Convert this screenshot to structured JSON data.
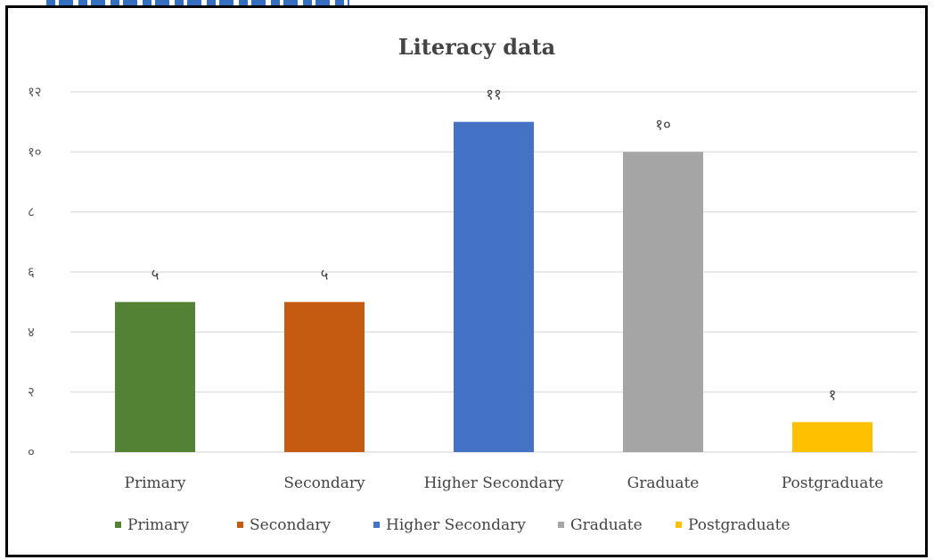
{
  "chart_data": {
    "type": "bar",
    "title": "Literacy data",
    "xlabel": "",
    "ylabel": "",
    "categories": [
      "Primary",
      "Secondary",
      "Higher Secondary",
      "Graduate",
      "Postgraduate"
    ],
    "values": [
      5,
      5,
      11,
      10,
      1
    ],
    "data_labels": [
      "५",
      "५",
      "११",
      "१०",
      "१"
    ],
    "colors": [
      "#548235",
      "#c55a11",
      "#4472c4",
      "#a5a5a5",
      "#ffc000"
    ],
    "ylim": [
      0,
      12
    ],
    "yticks": [
      0,
      2,
      4,
      6,
      8,
      10,
      12
    ],
    "ytick_labels": [
      "०",
      "२",
      "४",
      "६",
      "८",
      "१०",
      "१२"
    ],
    "grid": true,
    "legend": {
      "position": "bottom",
      "entries": [
        "Primary",
        "Secondary",
        "Higher Secondary",
        "Graduate",
        "Postgraduate"
      ]
    }
  }
}
